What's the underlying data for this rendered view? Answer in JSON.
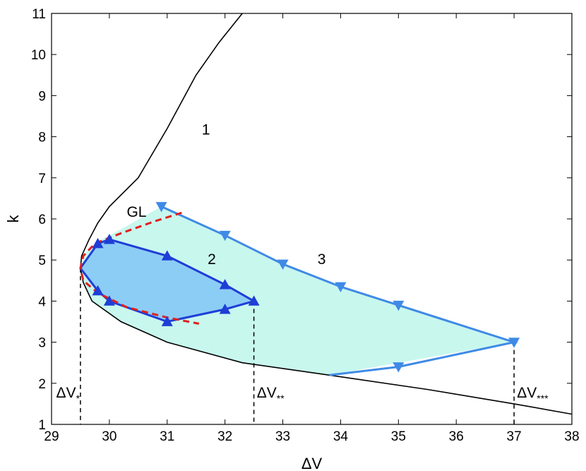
{
  "chart_data": {
    "type": "line",
    "xlabel": "ΔV",
    "ylabel": "k",
    "xlim": [
      29,
      38
    ],
    "ylim": [
      1,
      11
    ],
    "x_ticks": [
      29,
      30,
      31,
      32,
      33,
      34,
      35,
      36,
      37,
      38
    ],
    "y_ticks": [
      1,
      2,
      3,
      4,
      5,
      6,
      7,
      8,
      9,
      10,
      11
    ],
    "grid": false,
    "legend": "none",
    "colors": {
      "curve1": "#000000",
      "curve2": "#1e3ed6",
      "curve3": "#3f8ae6",
      "gl": "#e0201c",
      "fill2": "#8ccdf6",
      "fill3": "#c8f7ee",
      "guides": "#000000"
    },
    "series": [
      {
        "label": "1",
        "label_at": [
          31.6,
          8.05
        ],
        "marker": "none",
        "x": [
          32.3,
          31.9,
          31.5,
          31.0,
          30.5,
          30.0,
          29.8,
          29.65,
          29.52,
          29.5,
          29.55,
          29.7,
          30.2,
          31.0,
          32.3,
          33.8,
          35.5,
          37.0,
          38.0
        ],
        "y": [
          11.0,
          10.3,
          9.5,
          8.2,
          7.0,
          6.3,
          5.9,
          5.5,
          5.1,
          4.8,
          4.45,
          4.0,
          3.5,
          3.0,
          2.5,
          2.2,
          1.85,
          1.5,
          1.25
        ]
      },
      {
        "label": "2",
        "label_at": [
          31.7,
          4.9
        ],
        "marker": "triangle-up",
        "x": [
          29.5,
          29.8,
          30.0,
          31.0,
          32.0,
          32.5,
          32.0,
          31.0,
          30.0,
          29.8,
          29.5
        ],
        "y": [
          4.8,
          5.4,
          5.5,
          5.1,
          4.4,
          4.0,
          3.8,
          3.5,
          4.0,
          4.25,
          4.8
        ],
        "marker_points": [
          [
            29.8,
            5.4
          ],
          [
            30.0,
            5.5
          ],
          [
            31.0,
            5.1
          ],
          [
            32.0,
            4.4
          ],
          [
            32.5,
            4.0
          ],
          [
            32.0,
            3.8
          ],
          [
            31.0,
            3.5
          ],
          [
            30.0,
            4.0
          ],
          [
            29.8,
            4.25
          ]
        ]
      },
      {
        "label": "3",
        "label_at": [
          33.6,
          4.9
        ],
        "marker": "triangle-down",
        "x": [
          30.9,
          32.0,
          33.0,
          34.0,
          35.0,
          37.0,
          35.0,
          33.8
        ],
        "y": [
          6.3,
          5.6,
          4.9,
          4.35,
          3.9,
          3.0,
          2.4,
          2.2
        ],
        "marker_points": [
          [
            30.9,
            6.3
          ],
          [
            32.0,
            5.6
          ],
          [
            33.0,
            4.9
          ],
          [
            34.0,
            4.35
          ],
          [
            35.0,
            3.9
          ],
          [
            37.0,
            3.0
          ],
          [
            35.0,
            2.4
          ]
        ]
      },
      {
        "label": "GL",
        "label_at": [
          30.3,
          6.05
        ],
        "marker": "none",
        "style": "dashed",
        "x": [
          31.25,
          30.8,
          30.2,
          29.75,
          29.55,
          29.5,
          29.55,
          29.8,
          30.3,
          31.0,
          31.55
        ],
        "y": [
          6.15,
          5.95,
          5.65,
          5.4,
          5.1,
          4.8,
          4.5,
          4.2,
          3.85,
          3.6,
          3.45
        ]
      }
    ],
    "fill_regions": [
      {
        "x": [
          29.5,
          29.6,
          29.8,
          30.2,
          30.9,
          32.0,
          33.0,
          34.0,
          35.0,
          37.0,
          33.8,
          32.3,
          31.0,
          30.2,
          29.7,
          29.55,
          29.5
        ],
        "y": [
          4.8,
          5.2,
          5.45,
          5.75,
          6.3,
          5.6,
          4.9,
          4.35,
          3.9,
          3.0,
          2.2,
          2.5,
          3.0,
          3.5,
          4.0,
          4.45,
          4.8
        ]
      }
    ],
    "guide_lines": [
      {
        "x": 29.5,
        "y_top": 4.8,
        "text": "ΔV",
        "sub": "*",
        "text_at": [
          29.08,
          1.65
        ]
      },
      {
        "x": 32.5,
        "y_top": 4.0,
        "text": "ΔV",
        "sub": "**",
        "text_at": [
          32.55,
          1.65
        ]
      },
      {
        "x": 37.0,
        "y_top": 3.0,
        "text": "ΔV",
        "sub": "***",
        "text_at": [
          37.05,
          1.65
        ]
      }
    ]
  }
}
